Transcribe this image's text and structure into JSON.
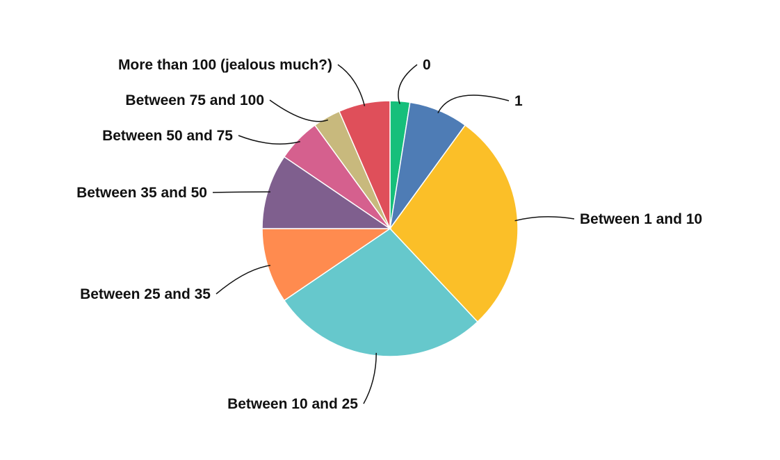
{
  "chart_data": {
    "type": "pie",
    "title": "",
    "start_angle_deg": 0,
    "direction": "clockwise",
    "legend": "none",
    "slices": [
      {
        "label": "0",
        "value": 2.5,
        "color": "#16BF7B"
      },
      {
        "label": "1",
        "value": 7.5,
        "color": "#4E7CB5"
      },
      {
        "label": "Between 1 and 10",
        "value": 28.0,
        "color": "#FBBF28"
      },
      {
        "label": "Between 10 and 25",
        "value": 27.5,
        "color": "#66C8CC"
      },
      {
        "label": "Between 25 and 35",
        "value": 9.5,
        "color": "#FF8B4F"
      },
      {
        "label": "Between 35 and 50",
        "value": 9.5,
        "color": "#7F5F8E"
      },
      {
        "label": "Between 50 and 75",
        "value": 5.5,
        "color": "#D5608E"
      },
      {
        "label": "Between 75 and 100",
        "value": 3.5,
        "color": "#C8B97D"
      },
      {
        "label": "More than 100 (jealous much?)",
        "value": 6.5,
        "color": "#DF4F5A"
      }
    ]
  }
}
